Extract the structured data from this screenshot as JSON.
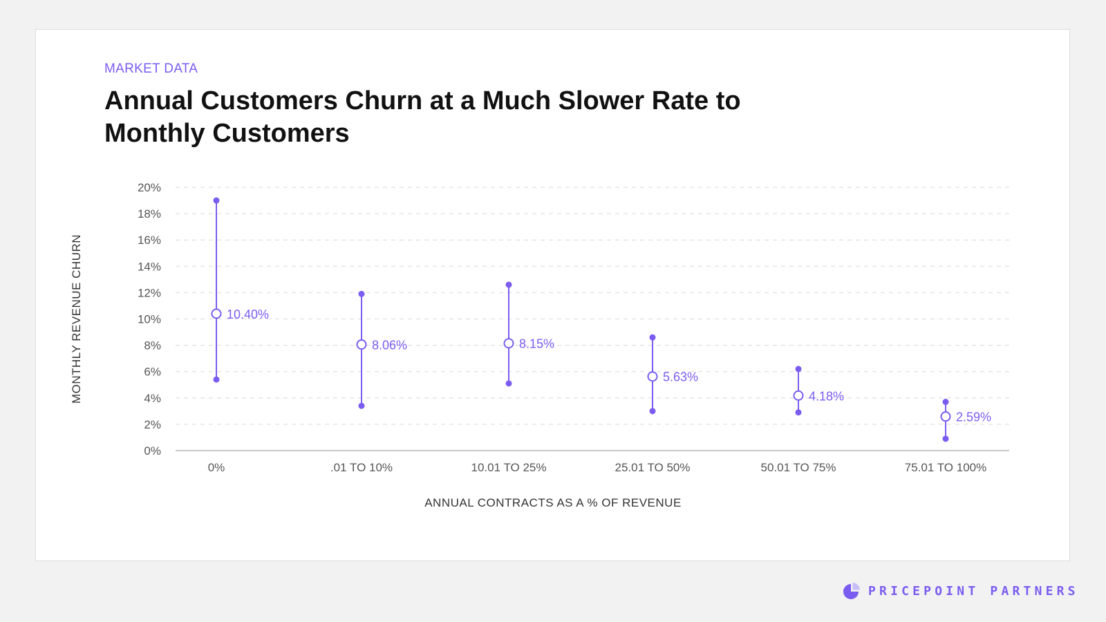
{
  "header": {
    "eyebrow": "MARKET DATA",
    "title": "Annual Customers Churn at a Much Slower Rate to Monthly Customers"
  },
  "brand": {
    "name": "PRICEPOINT PARTNERS",
    "icon": "pie-chart-logo-icon"
  },
  "colors": {
    "accent": "#7b5cf0",
    "grid": "#d9d9d9",
    "axis": "#c8c8c8",
    "text": "#333333"
  },
  "chart_data": {
    "type": "range-dot",
    "title": "Annual Customers Churn at a Much Slower Rate to Monthly Customers",
    "xlabel": "ANNUAL CONTRACTS AS A % OF REVENUE",
    "ylabel": "MONTHLY REVENUE CHURN",
    "ylim": [
      0,
      20
    ],
    "yticks": [
      0,
      2,
      4,
      6,
      8,
      10,
      12,
      14,
      16,
      18,
      20
    ],
    "ytick_labels": [
      "0%",
      "2%",
      "4%",
      "6%",
      "8%",
      "10%",
      "12%",
      "14%",
      "16%",
      "18%",
      "20%"
    ],
    "grid": true,
    "categories": [
      "0%",
      ".01 TO 10%",
      "10.01 TO 25%",
      "25.01 TO 50%",
      "50.01 TO 75%",
      "75.01 TO 100%"
    ],
    "series": [
      {
        "name": "low",
        "values": [
          5.4,
          3.4,
          5.1,
          3.0,
          2.9,
          0.9
        ]
      },
      {
        "name": "median",
        "values": [
          10.4,
          8.06,
          8.15,
          5.63,
          4.18,
          2.59
        ]
      },
      {
        "name": "high",
        "values": [
          19.0,
          11.9,
          12.6,
          8.6,
          6.2,
          3.7
        ]
      }
    ],
    "data_labels": [
      "10.40%",
      "8.06%",
      "8.15%",
      "5.63%",
      "4.18%",
      "2.59%"
    ]
  }
}
